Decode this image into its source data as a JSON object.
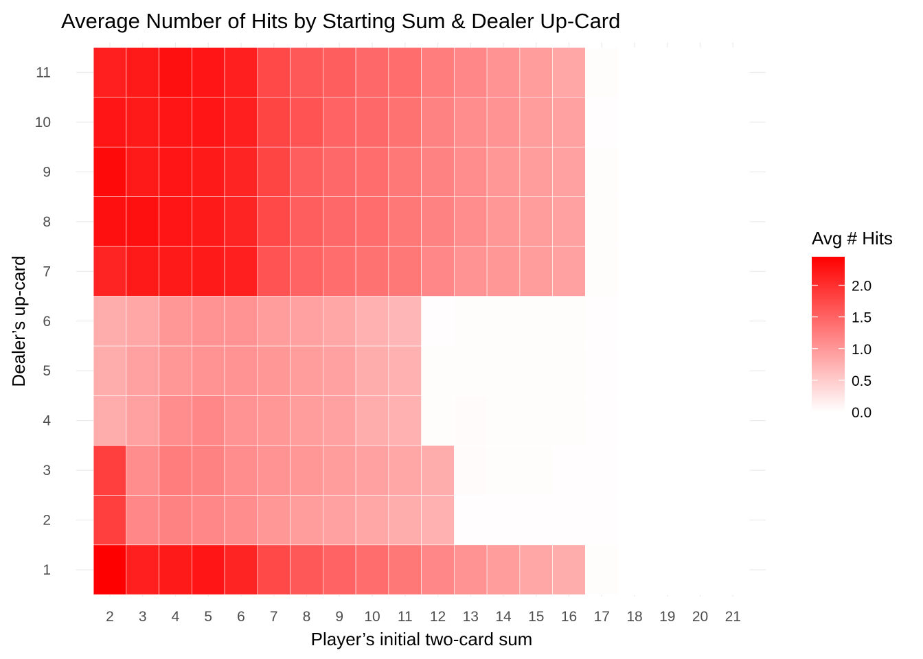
{
  "chart_data": {
    "type": "heatmap",
    "title": "Average Number of Hits by Starting Sum & Dealer Up-Card",
    "xlabel": "Player’s initial two-card sum",
    "ylabel": "Dealer’s up-card",
    "x": [
      2,
      3,
      4,
      5,
      6,
      7,
      8,
      9,
      10,
      11,
      12,
      13,
      14,
      15,
      16,
      17,
      18,
      19,
      20,
      21
    ],
    "y": [
      1,
      2,
      3,
      4,
      5,
      6,
      7,
      8,
      9,
      10,
      11
    ],
    "x_tick_labels": [
      "2",
      "3",
      "4",
      "5",
      "6",
      "7",
      "8",
      "9",
      "10",
      "11",
      "12",
      "13",
      "14",
      "15",
      "16",
      "17",
      "18",
      "19",
      "20",
      "21"
    ],
    "y_tick_labels": [
      "1",
      "2",
      "3",
      "4",
      "5",
      "6",
      "7",
      "8",
      "9",
      "10",
      "11"
    ],
    "values": [
      [
        2.45,
        2.15,
        2.2,
        2.25,
        2.1,
        1.75,
        1.6,
        1.5,
        1.4,
        1.3,
        1.15,
        1.05,
        0.95,
        0.85,
        0.8,
        0.03,
        0,
        0,
        0,
        0
      ],
      [
        1.85,
        1.15,
        1.2,
        1.15,
        1.1,
        1.0,
        0.95,
        0.9,
        0.85,
        0.8,
        0.75,
        0.02,
        0.02,
        0.02,
        0.02,
        0.02,
        0,
        0,
        0,
        0
      ],
      [
        1.85,
        1.1,
        1.25,
        1.2,
        1.1,
        1.05,
        1.0,
        0.95,
        0.9,
        0.85,
        0.8,
        0.04,
        0.03,
        0.03,
        0.02,
        0.02,
        0,
        0,
        0,
        0
      ],
      [
        0.8,
        0.9,
        1.1,
        1.15,
        1.05,
        1.0,
        0.95,
        0.9,
        0.8,
        0.75,
        0.03,
        0.04,
        0.03,
        0.03,
        0.03,
        0.02,
        0,
        0,
        0,
        0
      ],
      [
        0.8,
        0.9,
        1.0,
        1.05,
        1.05,
        1.0,
        0.95,
        0.9,
        0.8,
        0.75,
        0.03,
        0.03,
        0.03,
        0.03,
        0.03,
        0.02,
        0,
        0,
        0,
        0
      ],
      [
        0.8,
        0.85,
        1.0,
        1.05,
        1.05,
        0.95,
        0.9,
        0.85,
        0.75,
        0.7,
        0.02,
        0.03,
        0.03,
        0.03,
        0.03,
        0.02,
        0,
        0,
        0,
        0
      ],
      [
        2.1,
        2.2,
        2.2,
        2.2,
        2.15,
        1.65,
        1.5,
        1.4,
        1.35,
        1.3,
        1.15,
        1.05,
        1.0,
        0.95,
        0.9,
        0.03,
        0,
        0,
        0,
        0
      ],
      [
        2.3,
        2.3,
        2.25,
        2.2,
        2.1,
        1.75,
        1.55,
        1.45,
        1.4,
        1.3,
        1.2,
        1.1,
        1.0,
        0.95,
        0.9,
        0.03,
        0,
        0,
        0,
        0
      ],
      [
        2.35,
        2.2,
        2.25,
        2.2,
        2.1,
        1.8,
        1.55,
        1.45,
        1.4,
        1.3,
        1.2,
        1.1,
        1.0,
        0.95,
        0.9,
        0.03,
        0,
        0,
        0,
        0
      ],
      [
        2.25,
        2.2,
        2.25,
        2.25,
        2.15,
        1.8,
        1.65,
        1.5,
        1.45,
        1.35,
        1.2,
        1.1,
        1.05,
        0.95,
        0.9,
        0.02,
        0,
        0,
        0,
        0
      ],
      [
        2.15,
        2.2,
        2.3,
        2.25,
        2.15,
        1.75,
        1.6,
        1.55,
        1.45,
        1.4,
        1.25,
        1.15,
        1.05,
        0.95,
        0.85,
        0.03,
        0,
        0,
        0,
        0
      ]
    ],
    "legend": {
      "title": "Avg # Hits",
      "ticks": [
        "0.0",
        "0.5",
        "1.0",
        "1.5",
        "2.0"
      ],
      "tick_values": [
        0,
        0.5,
        1.0,
        1.5,
        2.0
      ],
      "range": [
        0,
        2.45
      ],
      "low_color": "#ffffff",
      "high_color": "#ff0000",
      "placement": "right"
    },
    "grid": true,
    "background_color": "#ffffff",
    "grid_color": "#ebebeb"
  }
}
